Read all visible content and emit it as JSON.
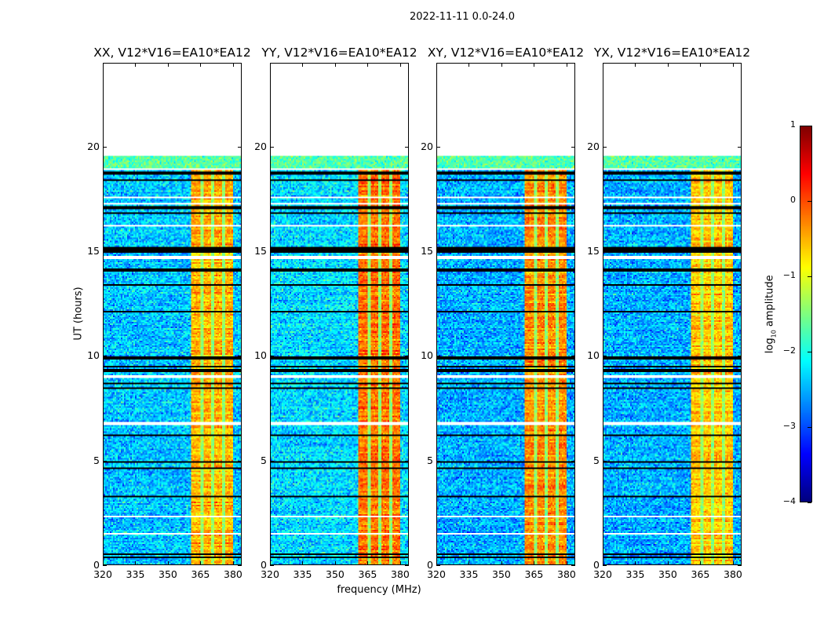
{
  "suptitle": "2022-11-11 0.0-24.0",
  "xlabel": "frequency (MHz)",
  "ylabel": "UT (hours)",
  "colorbar": {
    "label_main": "log",
    "label_sub": "10",
    "label_rest": " amplitude",
    "range": [
      -4,
      1
    ],
    "ticks": [
      "1",
      "0",
      "−1",
      "−2",
      "−3",
      "−4"
    ],
    "tick_values": [
      1,
      0,
      -1,
      -2,
      -3,
      -4
    ],
    "colormap": "jet"
  },
  "chart_data": [
    {
      "type": "heatmap",
      "title": "XX, V12*V16=EA10*EA12",
      "background_level": -2.4,
      "band_level": -0.5
    },
    {
      "type": "heatmap",
      "title": "YY, V12*V16=EA10*EA12",
      "background_level": -2.3,
      "band_level": -0.2
    },
    {
      "type": "heatmap",
      "title": "XY, V12*V16=EA10*EA12",
      "background_level": -2.5,
      "band_level": -0.3
    },
    {
      "type": "heatmap",
      "title": "YX, V12*V16=EA10*EA12",
      "background_level": -2.5,
      "band_level": -0.6
    }
  ],
  "shared_axes": {
    "xlim": [
      320,
      384
    ],
    "ylim": [
      0,
      24
    ],
    "xticks": [
      320,
      335,
      350,
      365,
      380
    ],
    "xtick_labels": [
      "320",
      "335",
      "350",
      "365",
      "380"
    ],
    "yticks": [
      0,
      5,
      10,
      15,
      20
    ],
    "ytick_labels": [
      "0",
      "5",
      "10",
      "15",
      "20"
    ],
    "data_time_range_hours": [
      0,
      19.6
    ],
    "rfi_band_mhz": [
      360.5,
      380.0
    ],
    "subband_edges_mhz": [
      365.8,
      370.9,
      376.0
    ],
    "flagged_hours_black": [
      0.35,
      0.5,
      3.25,
      4.6,
      4.9,
      6.2,
      8.45,
      8.65,
      9.3,
      9.5,
      9.9,
      12.1,
      13.4,
      14.1,
      15.0,
      15.1,
      15.2,
      16.85,
      17.1,
      18.4,
      18.75
    ],
    "gap_hours_white": [
      1.45,
      2.3,
      6.75,
      9.0,
      14.7,
      16.25,
      17.3,
      17.6,
      18.95
    ],
    "high_noise_period_hours": [
      18.9,
      19.6
    ]
  }
}
